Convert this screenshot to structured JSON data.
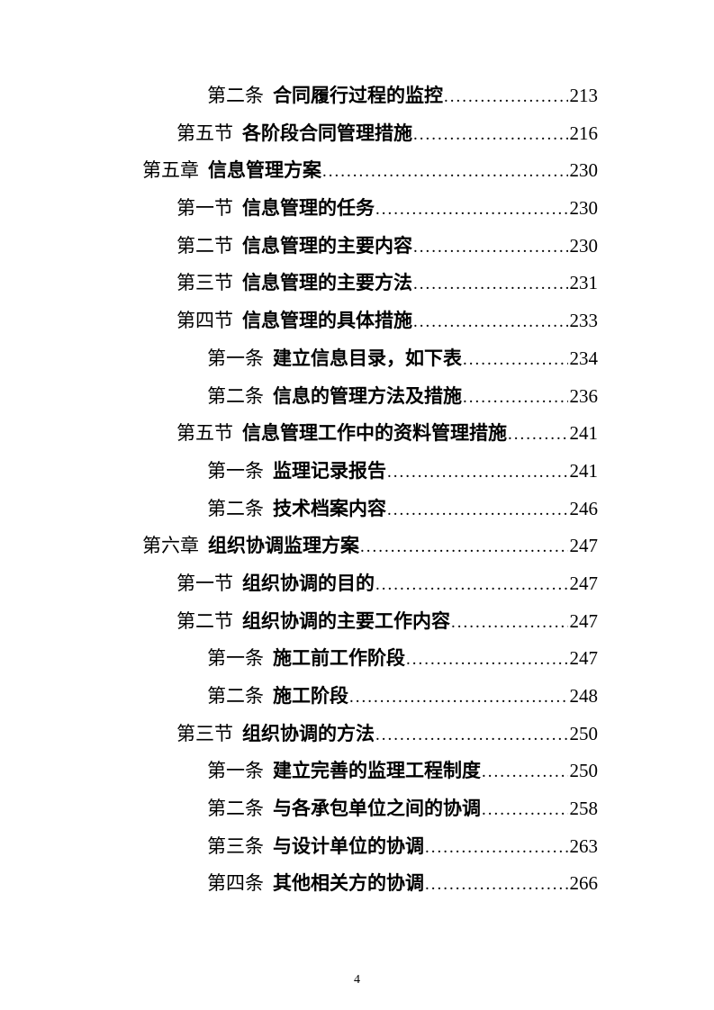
{
  "toc": {
    "entries": [
      {
        "level": 3,
        "label": "第二条",
        "title": "合同履行过程的监控",
        "page": "213"
      },
      {
        "level": 2,
        "label": "第五节",
        "title": "各阶段合同管理措施",
        "page": "216"
      },
      {
        "level": 1,
        "label": "第五章",
        "title": "信息管理方案",
        "page": "230"
      },
      {
        "level": 2,
        "label": "第一节",
        "title": "信息管理的任务",
        "page": "230"
      },
      {
        "level": 2,
        "label": "第二节",
        "title": "信息管理的主要内容",
        "page": "230"
      },
      {
        "level": 2,
        "label": "第三节",
        "title": "信息管理的主要方法",
        "page": "231"
      },
      {
        "level": 2,
        "label": "第四节",
        "title": "信息管理的具体措施",
        "page": "233"
      },
      {
        "level": 3,
        "label": "第一条",
        "title": "建立信息目录，如下表",
        "page": "234"
      },
      {
        "level": 3,
        "label": "第二条",
        "title": "信息的管理方法及措施",
        "page": "236"
      },
      {
        "level": 2,
        "label": "第五节",
        "title": "信息管理工作中的资料管理措施",
        "page": "241"
      },
      {
        "level": 3,
        "label": "第一条",
        "title": "监理记录报告",
        "page": "241"
      },
      {
        "level": 3,
        "label": "第二条",
        "title": "技术档案内容",
        "page": "246"
      },
      {
        "level": 1,
        "label": "第六章",
        "title": "组织协调监理方案",
        "page": "247"
      },
      {
        "level": 2,
        "label": "第一节",
        "title": "组织协调的目的",
        "page": "247"
      },
      {
        "level": 2,
        "label": "第二节",
        "title": "组织协调的主要工作内容",
        "page": "247"
      },
      {
        "level": 3,
        "label": "第一条",
        "title": "施工前工作阶段",
        "page": "247"
      },
      {
        "level": 3,
        "label": "第二条",
        "title": "施工阶段",
        "page": "248"
      },
      {
        "level": 2,
        "label": "第三节",
        "title": "组织协调的方法",
        "page": "250"
      },
      {
        "level": 3,
        "label": "第一条",
        "title": "建立完善的监理工程制度",
        "page": "250"
      },
      {
        "level": 3,
        "label": "第二条",
        "title": "与各承包单位之间的协调",
        "page": "258"
      },
      {
        "level": 3,
        "label": "第三条",
        "title": "与设计单位的协调",
        "page": "263"
      },
      {
        "level": 3,
        "label": "第四条",
        "title": "其他相关方的协调",
        "page": "266"
      }
    ]
  },
  "footer": {
    "page_number": "4"
  }
}
